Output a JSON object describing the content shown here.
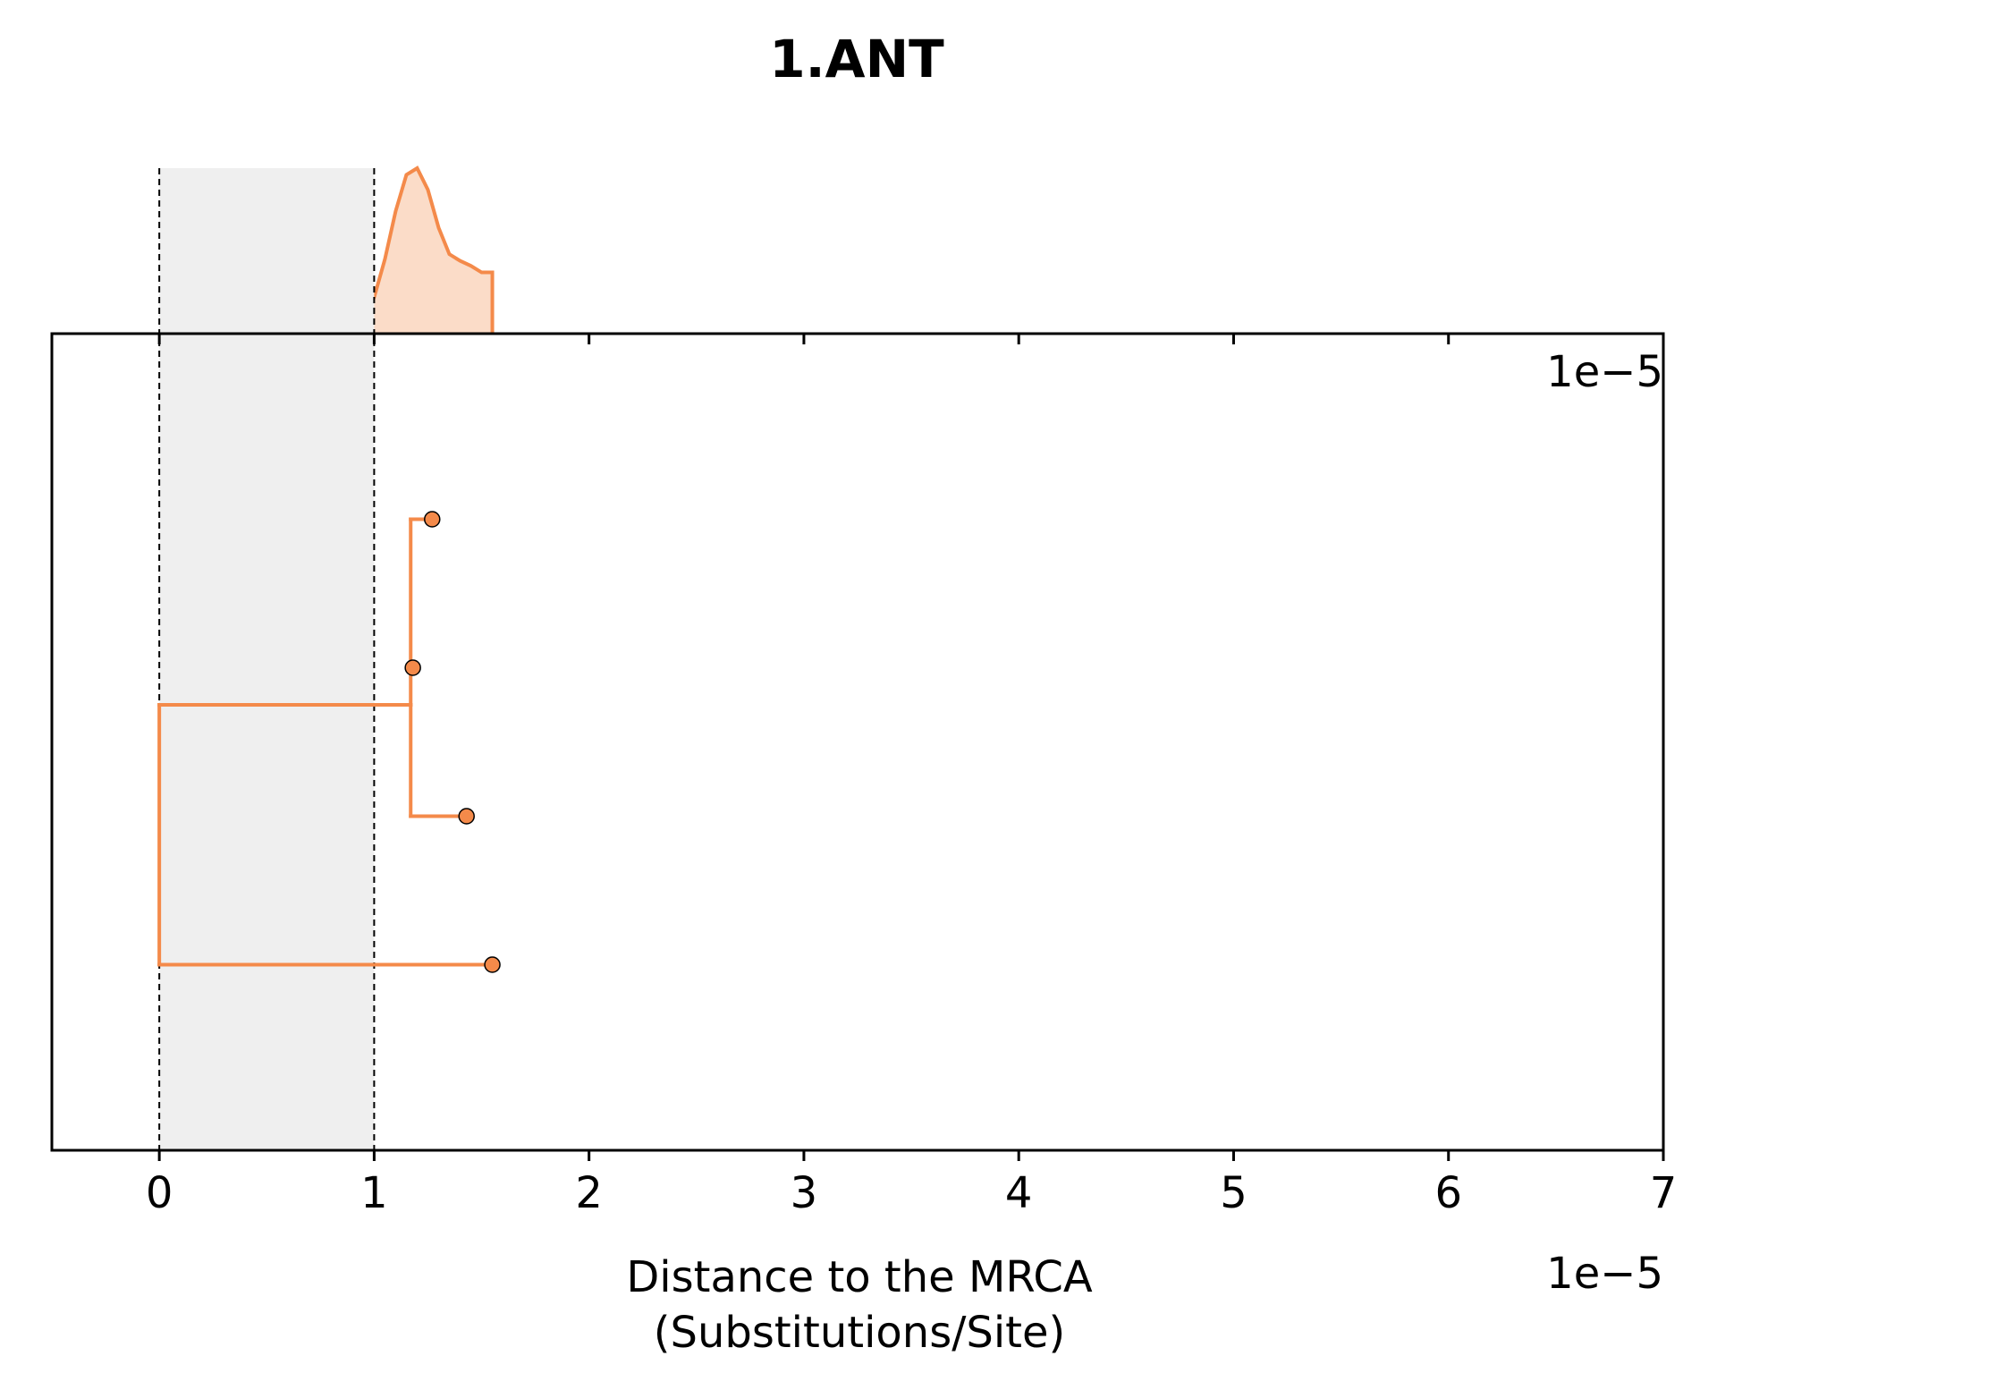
{
  "chart_data": {
    "type": "tree",
    "title": "1.ANT",
    "xlabel": [
      "Distance to the MRCA",
      "(Substitutions/Site)"
    ],
    "scale_label": "1e−5",
    "xlim": [
      -0.5,
      7
    ],
    "x_ticks": [
      0,
      1,
      2,
      3,
      4,
      5,
      6,
      7
    ],
    "x_tick_labels": [
      "0",
      "1",
      "2",
      "3",
      "4",
      "5",
      "6",
      "7"
    ],
    "grid": false,
    "shaded_region": {
      "from": 0,
      "to": 1,
      "color": "#efefef"
    },
    "reference_lines": [
      0,
      1
    ],
    "series_color": "#f48a4a",
    "density_fill": "#fbdcc8",
    "tree": {
      "edges": [
        {
          "from": [
            0,
            3
          ],
          "to": [
            1.17,
            3
          ]
        },
        {
          "from": [
            0,
            3
          ],
          "to": [
            0,
            1.25
          ]
        },
        {
          "from": [
            0,
            1.25
          ],
          "to": [
            1.55,
            1.25
          ]
        },
        {
          "from": [
            1.17,
            3
          ],
          "to": [
            1.17,
            4.25
          ]
        },
        {
          "from": [
            1.17,
            3
          ],
          "to": [
            1.17,
            2.25
          ]
        },
        {
          "from": [
            1.17,
            4.25
          ],
          "to": [
            1.27,
            4.25
          ]
        },
        {
          "from": [
            1.17,
            2.25
          ],
          "to": [
            1.43,
            2.25
          ]
        }
      ],
      "tips": [
        {
          "x": 1.27,
          "y": 4.25
        },
        {
          "x": 1.18,
          "y": 3.25
        },
        {
          "x": 1.43,
          "y": 2.25
        },
        {
          "x": 1.55,
          "y": 1.25
        }
      ],
      "ylim": [
        0,
        5.5
      ]
    },
    "density": {
      "x": [
        0.82,
        0.88,
        0.95,
        1.0,
        1.05,
        1.1,
        1.15,
        1.2,
        1.25,
        1.3,
        1.35,
        1.4,
        1.45,
        1.5,
        1.55
      ],
      "y": [
        0.0,
        0.04,
        0.11,
        0.22,
        0.45,
        0.74,
        0.96,
        1.0,
        0.87,
        0.64,
        0.48,
        0.44,
        0.41,
        0.37,
        0.37
      ]
    }
  }
}
